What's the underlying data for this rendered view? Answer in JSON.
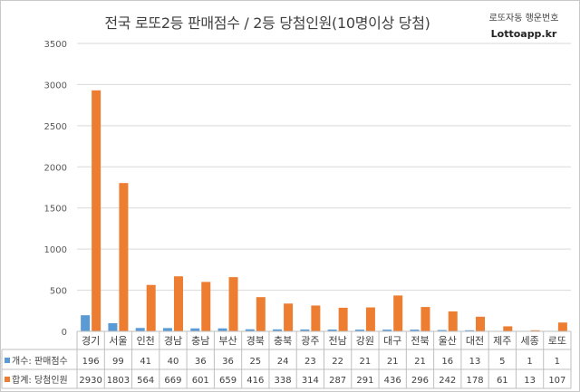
{
  "chart_data": {
    "type": "bar",
    "title": "전국 로또2등 판매점수 / 2등 당첨인원(10명이상 당첨)",
    "annotation": "로또자동 행운번호",
    "brand": "Lottoapp.kr",
    "categories": [
      "경기",
      "서울",
      "인천",
      "경남",
      "충남",
      "부산",
      "경북",
      "충북",
      "광주",
      "전남",
      "강원",
      "대구",
      "전북",
      "울산",
      "대전",
      "제주",
      "세종",
      "로또"
    ],
    "series": [
      {
        "name": "개수: 판매점수",
        "color": "#5b9bd5",
        "values": [
          196,
          99,
          41,
          40,
          36,
          36,
          25,
          24,
          23,
          22,
          21,
          21,
          21,
          16,
          13,
          5,
          1,
          1
        ]
      },
      {
        "name": "합계: 당첨인원",
        "color": "#ed7d31",
        "values": [
          2930,
          1803,
          564,
          669,
          601,
          659,
          416,
          338,
          314,
          287,
          291,
          436,
          296,
          242,
          178,
          61,
          13,
          107
        ]
      }
    ],
    "ylim": [
      0,
      3500
    ],
    "yticks": [
      0,
      500,
      1000,
      1500,
      2000,
      2500,
      3000,
      3500
    ],
    "grid": true,
    "legend": "data-table"
  }
}
